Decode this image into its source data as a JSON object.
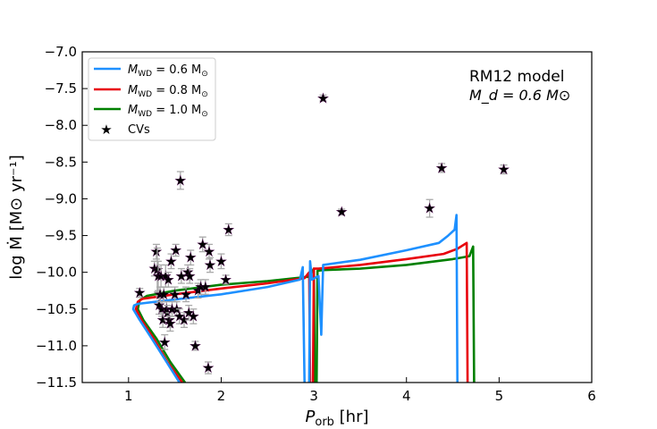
{
  "chart_data": {
    "type": "line",
    "xlabel_main": "P",
    "xlabel_sub": "orb",
    "xlabel_tail": " [hr]",
    "ylabel": "log Ṁ [M⊙ yr⁻¹]",
    "xlim": [
      0.5,
      6.0
    ],
    "ylim": [
      -11.5,
      -7.0
    ],
    "xticks": [
      1,
      2,
      3,
      4,
      5,
      6
    ],
    "yticks": [
      -7.0,
      -7.5,
      -8.0,
      -8.5,
      -9.0,
      -9.5,
      -10.0,
      -10.5,
      -11.0,
      -11.5
    ],
    "annotation_line1": "RM12 model",
    "annotation_line2": "M_d = 0.6 M⊙",
    "legend_position": "top-left",
    "series": [
      {
        "name": "M_WD = 0.6 M⊙",
        "label": "0.6",
        "color": "#1e90ff",
        "points": [
          [
            1.55,
            -11.5
          ],
          [
            1.4,
            -11.2
          ],
          [
            1.25,
            -10.9
          ],
          [
            1.12,
            -10.65
          ],
          [
            1.05,
            -10.5
          ],
          [
            1.06,
            -10.45
          ],
          [
            1.1,
            -10.43
          ],
          [
            1.5,
            -10.37
          ],
          [
            2.0,
            -10.3
          ],
          [
            2.5,
            -10.2
          ],
          [
            2.85,
            -10.1
          ],
          [
            2.88,
            -9.93
          ],
          [
            2.9,
            -11.5
          ]
        ],
        "segment2": [
          [
            2.95,
            -11.5
          ],
          [
            2.96,
            -9.85
          ],
          [
            2.98,
            -10.1
          ],
          [
            3.05,
            -10.05
          ],
          [
            3.08,
            -10.85
          ],
          [
            3.1,
            -9.9
          ],
          [
            3.5,
            -9.83
          ],
          [
            4.0,
            -9.7
          ],
          [
            4.35,
            -9.6
          ],
          [
            4.45,
            -9.5
          ],
          [
            4.52,
            -9.42
          ],
          [
            4.54,
            -9.22
          ],
          [
            4.55,
            -11.5
          ]
        ]
      },
      {
        "name": "M_WD = 0.8 M⊙",
        "label": "0.8",
        "color": "#e8000b",
        "points": [
          [
            1.58,
            -11.5
          ],
          [
            1.42,
            -11.22
          ],
          [
            1.27,
            -10.9
          ],
          [
            1.14,
            -10.65
          ],
          [
            1.08,
            -10.5
          ],
          [
            1.1,
            -10.4
          ],
          [
            1.15,
            -10.36
          ],
          [
            1.5,
            -10.3
          ],
          [
            2.0,
            -10.22
          ],
          [
            2.5,
            -10.15
          ],
          [
            2.9,
            -10.08
          ],
          [
            2.95,
            -10.0
          ],
          [
            2.96,
            -11.5
          ]
        ]
      },
      {
        "name": "M_WD = 1.0 M⊙",
        "label": "1.0",
        "color": "#008000",
        "points": [
          [
            1.61,
            -11.5
          ],
          [
            1.45,
            -11.22
          ],
          [
            1.3,
            -10.9
          ],
          [
            1.16,
            -10.65
          ],
          [
            1.1,
            -10.5
          ],
          [
            1.12,
            -10.38
          ],
          [
            1.2,
            -10.32
          ],
          [
            1.5,
            -10.25
          ],
          [
            2.0,
            -10.17
          ],
          [
            2.5,
            -10.12
          ],
          [
            2.95,
            -10.06
          ],
          [
            3.0,
            -9.95
          ],
          [
            3.01,
            -11.5
          ]
        ]
      }
    ],
    "red_segment2": [
      [
        2.99,
        -11.5
      ],
      [
        3.0,
        -9.95
      ],
      [
        3.05,
        -9.95
      ],
      [
        3.5,
        -9.9
      ],
      [
        4.0,
        -9.82
      ],
      [
        4.4,
        -9.75
      ],
      [
        4.55,
        -9.68
      ],
      [
        4.65,
        -9.6
      ],
      [
        4.66,
        -11.5
      ]
    ],
    "green_segment2": [
      [
        3.03,
        -11.5
      ],
      [
        3.04,
        -9.98
      ],
      [
        3.1,
        -9.97
      ],
      [
        3.5,
        -9.95
      ],
      [
        4.0,
        -9.9
      ],
      [
        4.5,
        -9.82
      ],
      [
        4.68,
        -9.78
      ],
      [
        4.72,
        -9.65
      ],
      [
        4.73,
        -11.5
      ]
    ],
    "cvs_label": "CVs",
    "cvs_color": "#800080",
    "cvs": [
      {
        "x": 1.12,
        "y": -10.28,
        "e": 0.06
      },
      {
        "x": 1.28,
        "y": -9.95,
        "e": 0.1
      },
      {
        "x": 1.3,
        "y": -9.72,
        "e": 0.1
      },
      {
        "x": 1.31,
        "y": -9.97,
        "e": 0.3
      },
      {
        "x": 1.32,
        "y": -10.05,
        "e": 0.2
      },
      {
        "x": 1.33,
        "y": -10.45,
        "e": 0.12
      },
      {
        "x": 1.34,
        "y": -10.3,
        "e": 0.1
      },
      {
        "x": 1.35,
        "y": -10.05,
        "e": 0.15
      },
      {
        "x": 1.36,
        "y": -10.5,
        "e": 0.1
      },
      {
        "x": 1.37,
        "y": -10.65,
        "e": 0.1
      },
      {
        "x": 1.38,
        "y": -10.3,
        "e": 0.1
      },
      {
        "x": 1.39,
        "y": -10.95,
        "e": 0.1
      },
      {
        "x": 1.4,
        "y": -10.05,
        "e": 0.15
      },
      {
        "x": 1.41,
        "y": -10.5,
        "e": 0.1
      },
      {
        "x": 1.42,
        "y": -10.55,
        "e": 0.1
      },
      {
        "x": 1.43,
        "y": -10.1,
        "e": 0.1
      },
      {
        "x": 1.44,
        "y": -10.65,
        "e": 0.1
      },
      {
        "x": 1.45,
        "y": -10.7,
        "e": 0.1
      },
      {
        "x": 1.46,
        "y": -9.85,
        "e": 0.1
      },
      {
        "x": 1.47,
        "y": -10.5,
        "e": 0.1
      },
      {
        "x": 1.5,
        "y": -10.3,
        "e": 0.1
      },
      {
        "x": 1.51,
        "y": -9.7,
        "e": 0.08
      },
      {
        "x": 1.52,
        "y": -10.5,
        "e": 0.1
      },
      {
        "x": 1.55,
        "y": -10.6,
        "e": 0.1
      },
      {
        "x": 1.56,
        "y": -8.75,
        "e": 0.12
      },
      {
        "x": 1.57,
        "y": -10.05,
        "e": 0.1
      },
      {
        "x": 1.6,
        "y": -10.65,
        "e": 0.1
      },
      {
        "x": 1.62,
        "y": -10.3,
        "e": 0.1
      },
      {
        "x": 1.64,
        "y": -10.0,
        "e": 0.1
      },
      {
        "x": 1.65,
        "y": -10.55,
        "e": 0.1
      },
      {
        "x": 1.66,
        "y": -10.05,
        "e": 0.1
      },
      {
        "x": 1.67,
        "y": -9.8,
        "e": 0.1
      },
      {
        "x": 1.7,
        "y": -10.6,
        "e": 0.1
      },
      {
        "x": 1.72,
        "y": -11.0,
        "e": 0.06
      },
      {
        "x": 1.75,
        "y": -10.25,
        "e": 0.1
      },
      {
        "x": 1.78,
        "y": -10.2,
        "e": 0.1
      },
      {
        "x": 1.8,
        "y": -9.62,
        "e": 0.1
      },
      {
        "x": 1.83,
        "y": -10.2,
        "e": 0.1
      },
      {
        "x": 1.86,
        "y": -11.3,
        "e": 0.08
      },
      {
        "x": 1.87,
        "y": -9.72,
        "e": 0.1
      },
      {
        "x": 1.88,
        "y": -9.9,
        "e": 0.1
      },
      {
        "x": 2.0,
        "y": -9.85,
        "e": 0.1
      },
      {
        "x": 2.05,
        "y": -10.1,
        "e": 0.06
      },
      {
        "x": 2.08,
        "y": -9.42,
        "e": 0.08
      },
      {
        "x": 3.1,
        "y": -7.63,
        "e": 0.04
      },
      {
        "x": 3.3,
        "y": -9.18,
        "e": 0.04
      },
      {
        "x": 4.25,
        "y": -9.13,
        "e": 0.12
      },
      {
        "x": 4.38,
        "y": -8.58,
        "e": 0.06
      },
      {
        "x": 5.05,
        "y": -8.6,
        "e": 0.06
      }
    ]
  }
}
